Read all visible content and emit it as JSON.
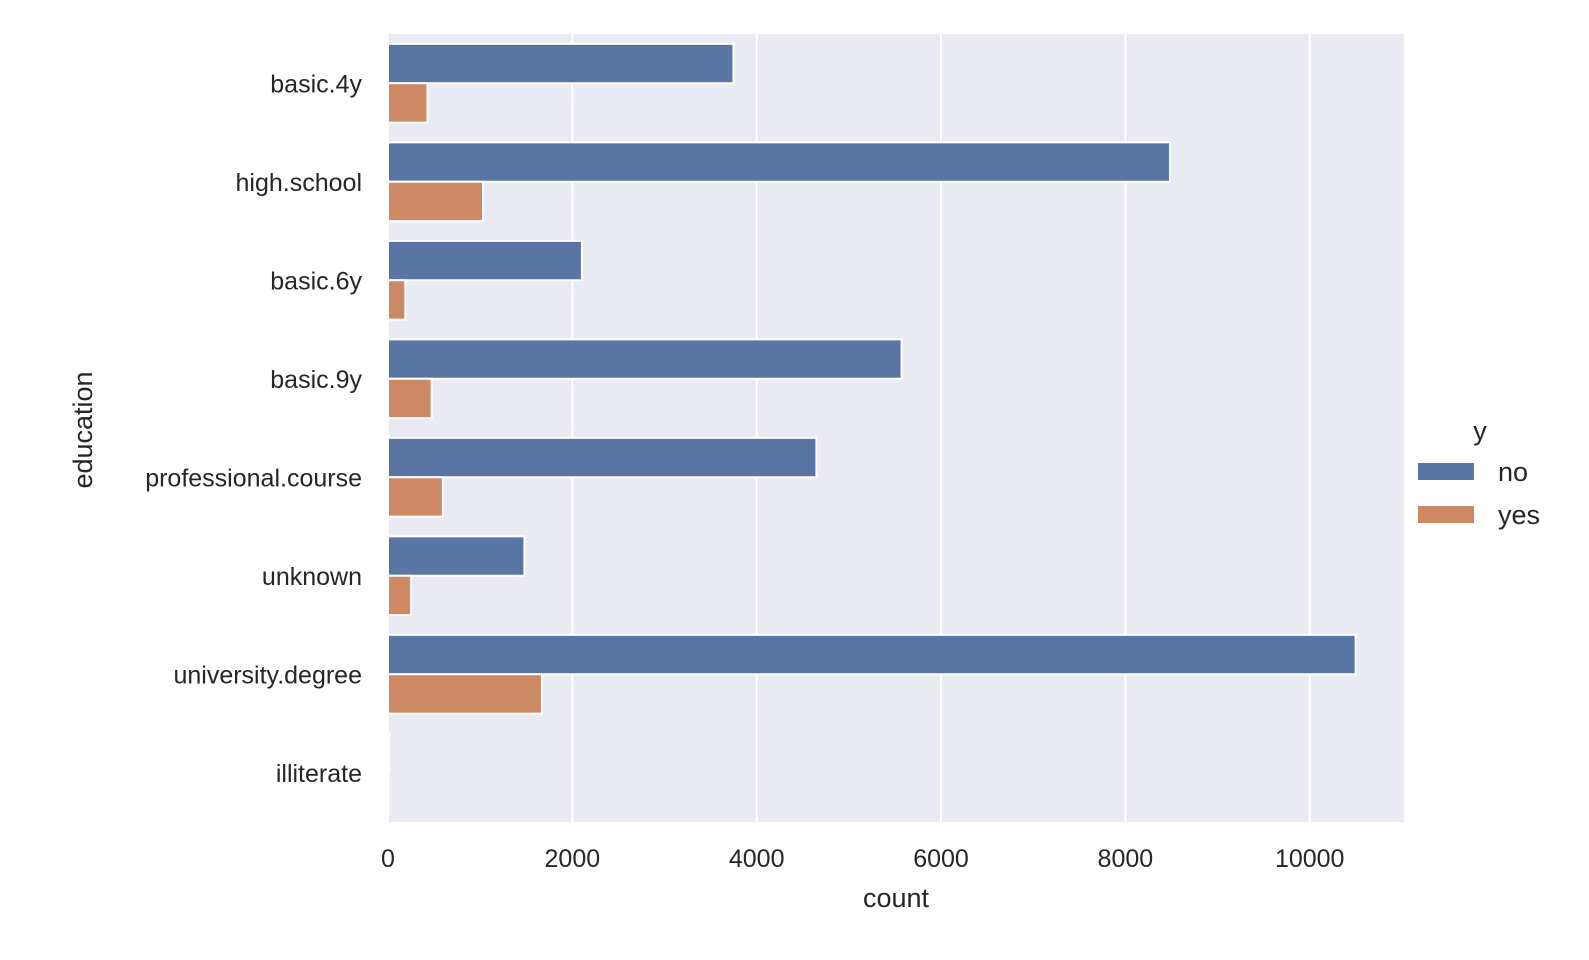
{
  "chart_data": {
    "type": "bar",
    "orientation": "horizontal",
    "title": "",
    "xlabel": "count",
    "ylabel": "education",
    "categories": [
      "basic.4y",
      "high.school",
      "basic.6y",
      "basic.9y",
      "professional.course",
      "unknown",
      "university.degree",
      "illiterate"
    ],
    "series": [
      {
        "name": "no",
        "color": "#5975a4",
        "values": [
          3748,
          8484,
          2104,
          5572,
          4648,
          1480,
          10498,
          14
        ]
      },
      {
        "name": "yes",
        "color": "#cc8963",
        "values": [
          428,
          1031,
          188,
          473,
          595,
          251,
          1670,
          4
        ]
      }
    ],
    "xlim": [
      0,
      11023
    ],
    "xticks": [
      0,
      2000,
      4000,
      6000,
      8000,
      10000
    ],
    "xtick_labels": [
      "0",
      "2000",
      "4000",
      "6000",
      "8000",
      "10000"
    ],
    "grid": true,
    "background": "#eaeaf2",
    "legend": {
      "title": "y",
      "placement": "right",
      "entries": [
        "no",
        "yes"
      ]
    }
  }
}
